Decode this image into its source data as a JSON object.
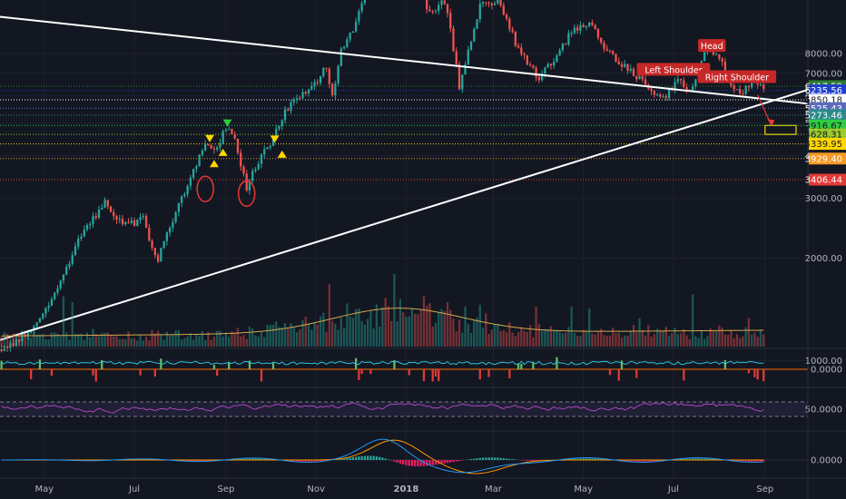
{
  "colors": {
    "bg": "#131722",
    "up": "#26a69a",
    "down": "#ef5350",
    "trend": "#ffffff",
    "macd": "#2196f3",
    "signal": "#ff9800",
    "rsi": "#ab47bc"
  },
  "chart_data": [
    {
      "type": "candlestick",
      "title": "",
      "xlabel": "",
      "ylabel": "",
      "x_axis": {
        "tick_labels": [
          "May",
          "Jul",
          "Sep",
          "Nov",
          "2018",
          "Mar",
          "May",
          "Jul",
          "Sep"
        ],
        "tick_dates": [
          "2017-05-01",
          "2017-07-01",
          "2017-09-01",
          "2017-11-01",
          "2018-01-01",
          "2018-03-01",
          "2018-05-01",
          "2018-07-01",
          "2018-09-01"
        ],
        "range": [
          "2017-04-01",
          "2018-09-30"
        ]
      },
      "y_axis": {
        "scale": "log",
        "ylim": [
          1100,
          11500
        ],
        "tick_values": [
          8000,
          7000,
          6000,
          5000,
          4000,
          3000,
          2000,
          1000
        ],
        "tick_labels": [
          "8000.00",
          "7000.00",
          "6000.00",
          "5000.00",
          "4000.00",
          "3000.00",
          "2000.00",
          "1000.00"
        ]
      },
      "price_levels": [
        {
          "value": 6417.59,
          "label": "6417.59",
          "color": "#2e7d32"
        },
        {
          "value": 6235.56,
          "label": "6235.56",
          "color": "#1e3fd0"
        },
        {
          "value": 5850.18,
          "label": "5850.18",
          "color": "#ffffff"
        },
        {
          "value": 5525.43,
          "label": "5525.43",
          "color": "#5c6bc0"
        },
        {
          "value": 5273.46,
          "label": "5273.46",
          "color": "#2a8a8a"
        },
        {
          "value": 4916.67,
          "label": "4916.67",
          "color": "#2ecc40"
        },
        {
          "value": 4628.31,
          "label": "4628.31",
          "color": "#9ccc2c"
        },
        {
          "value": 4339.95,
          "label": "4339.95",
          "color": "#ffd600"
        },
        {
          "value": 3929.4,
          "label": "3929.40",
          "color": "#f59a23"
        },
        {
          "value": 3406.44,
          "label": "3406.44",
          "color": "#e53935"
        }
      ],
      "trendlines": [
        {
          "name": "descending",
          "from": {
            "x": "2017-03-20",
            "y": 10400
          },
          "to": {
            "x": "2018-09-30",
            "y": 5700
          }
        },
        {
          "name": "ascending",
          "from": {
            "x": "2017-04-01",
            "y": 1150
          },
          "to": {
            "x": "2018-09-30",
            "y": 6260
          }
        }
      ],
      "annotations": [
        {
          "text": "Head",
          "x": "2018-07-27",
          "y": 8400
        },
        {
          "text": "Left Shoulder",
          "x": "2018-07-01",
          "y": 7150
        },
        {
          "text": "Right Shoulder",
          "x": "2018-08-13",
          "y": 6800
        }
      ],
      "target_zone": {
        "x": [
          "2018-09-01",
          "2018-09-22"
        ],
        "y": [
          4628.31,
          4916.67
        ],
        "color": "#ffd600"
      },
      "projection_arrow": {
        "from": {
          "x": "2018-08-27",
          "y": 6050
        },
        "to": {
          "x": "2018-09-05",
          "y": 4950
        }
      },
      "markers": [
        {
          "shape": "ellipse",
          "x": "2017-08-18",
          "y": 3200,
          "color": "#e53935"
        },
        {
          "shape": "ellipse",
          "x": "2017-09-15",
          "y": 3100,
          "color": "#e53935"
        },
        {
          "shape": "triangle-down",
          "x": "2017-08-21",
          "y": 4500,
          "color": "#ffd600"
        },
        {
          "shape": "triangle-up",
          "x": "2017-08-24",
          "y": 3800,
          "color": "#ffd600"
        },
        {
          "shape": "triangle-up",
          "x": "2017-08-30",
          "y": 4100,
          "color": "#ffd600"
        },
        {
          "shape": "triangle-down",
          "x": "2017-09-02",
          "y": 5000,
          "color": "#2ecc40"
        },
        {
          "shape": "triangle-down",
          "x": "2017-10-04",
          "y": 4480,
          "color": "#ffd600"
        },
        {
          "shape": "triangle-up",
          "x": "2017-10-09",
          "y": 4050,
          "color": "#ffd600"
        }
      ],
      "series": [
        {
          "price_path": [
            [
              "2017-04-01",
              1080
            ],
            [
              "2017-04-20",
              1200
            ],
            [
              "2017-05-06",
              1500
            ],
            [
              "2017-05-25",
              2300
            ],
            [
              "2017-06-11",
              2900
            ],
            [
              "2017-06-25",
              2500
            ],
            [
              "2017-07-07",
              2600
            ],
            [
              "2017-07-16",
              1950
            ],
            [
              "2017-07-30",
              2800
            ],
            [
              "2017-08-08",
              3400
            ],
            [
              "2017-08-17",
              4300
            ],
            [
              "2017-08-24",
              4100
            ],
            [
              "2017-09-02",
              4900
            ],
            [
              "2017-09-08",
              4300
            ],
            [
              "2017-09-15",
              3200
            ],
            [
              "2017-09-22",
              3800
            ],
            [
              "2017-10-01",
              4350
            ],
            [
              "2017-10-12",
              5500
            ],
            [
              "2017-10-21",
              6000
            ],
            [
              "2017-10-31",
              6500
            ],
            [
              "2017-11-08",
              7400
            ],
            [
              "2017-11-12",
              5900
            ],
            [
              "2017-11-17",
              8000
            ],
            [
              "2017-11-28",
              9900
            ],
            [
              "2017-12-07",
              13500
            ],
            [
              "2017-12-17",
              19500
            ],
            [
              "2017-12-22",
              13500
            ],
            [
              "2018-01-06",
              17000
            ],
            [
              "2018-01-16",
              10500
            ],
            [
              "2018-01-28",
              11500
            ],
            [
              "2018-02-06",
              6400
            ],
            [
              "2018-02-20",
              11000
            ],
            [
              "2018-03-05",
              11500
            ],
            [
              "2018-03-18",
              8200
            ],
            [
              "2018-04-01",
              6800
            ],
            [
              "2018-04-12",
              7800
            ],
            [
              "2018-04-24",
              9400
            ],
            [
              "2018-05-05",
              9800
            ],
            [
              "2018-05-18",
              8100
            ],
            [
              "2018-05-29",
              7300
            ],
            [
              "2018-06-12",
              6500
            ],
            [
              "2018-06-24",
              5900
            ],
            [
              "2018-07-05",
              6700
            ],
            [
              "2018-07-13",
              6250
            ],
            [
              "2018-07-24",
              8300
            ],
            [
              "2018-08-01",
              7700
            ],
            [
              "2018-08-10",
              6400
            ],
            [
              "2018-08-14",
              6050
            ],
            [
              "2018-08-23",
              6500
            ],
            [
              "2018-08-30",
              6400
            ]
          ]
        }
      ]
    },
    {
      "type": "bar",
      "title": "",
      "xlabel": "",
      "ylabel": "",
      "note_values": "volume histogram with moving average, unscaled"
    },
    {
      "type": "area",
      "title": "",
      "xlabel": "",
      "ylabel": "",
      "y_axis": {
        "tick_values": [
          0
        ],
        "tick_labels": [
          "0.0000"
        ]
      }
    },
    {
      "type": "line",
      "title": "",
      "xlabel": "",
      "ylabel": "",
      "y_axis": {
        "tick_values": [
          50
        ],
        "tick_labels": [
          "50.0000"
        ],
        "bands": [
          70,
          30
        ]
      }
    },
    {
      "type": "line",
      "title": "",
      "xlabel": "",
      "ylabel": "",
      "y_axis": {
        "tick_values": [
          0
        ],
        "tick_labels": [
          "0.0000"
        ]
      }
    }
  ]
}
